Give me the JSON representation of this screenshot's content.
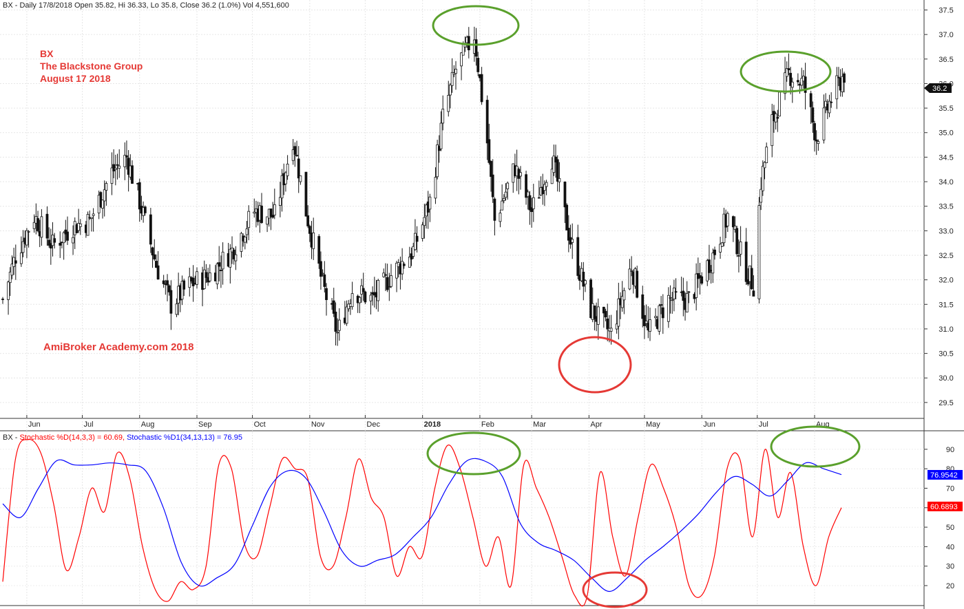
{
  "header": {
    "price": "BX - Daily 17/8/2018 Open 35.82, Hi 36.33, Lo 35.8, Close 36.2 (1.0%) Vol 4,551,600",
    "stoch_prefix": "BX - ",
    "stoch_d": "Stochastic %D(14,3,3) = 60.69,",
    "stoch_d1": "Stochastic %D1(34,13,13) = 76.95"
  },
  "annotations": {
    "symbol": "BX",
    "company": "The Blackstone Group",
    "date": "August 17 2018",
    "watermark": "AmiBroker Academy.com  2018"
  },
  "badges": {
    "last_close": "36.2",
    "stoch_d1_last": "76.9542",
    "stoch_d_last": "60.6893"
  },
  "colors": {
    "stoch_d": "#ff0000",
    "stoch_d1": "#0000ff",
    "peak_circle": "#5aa02c",
    "trough_circle": "#e53935",
    "annotation": "#e53935"
  },
  "chart_data": [
    {
      "type": "candlestick",
      "title": "",
      "ylim": [
        29.3,
        37.75
      ],
      "y_ticks": [
        "29.5",
        "30.0",
        "30.5",
        "31.0",
        "31.5",
        "32.0",
        "32.5",
        "33.0",
        "33.5",
        "34.0",
        "34.5",
        "35.0",
        "35.5",
        "36.0",
        "36.5",
        "37.0",
        "37.5"
      ],
      "x_tick_labels": [
        "Jun",
        "Jul",
        "Aug",
        "Sep",
        "Oct",
        "Nov",
        "Dec",
        "2018",
        "Feb",
        "Mar",
        "Apr",
        "May",
        "Jun",
        "Jul",
        "Aug"
      ],
      "close_path": [
        {
          "date": "2017-05-19",
          "close": 31.6
        },
        {
          "date": "2017-05-26",
          "close": 32.5
        },
        {
          "date": "2017-06-05",
          "close": 33.3
        },
        {
          "date": "2017-06-15",
          "close": 32.7
        },
        {
          "date": "2017-06-26",
          "close": 33.1
        },
        {
          "date": "2017-07-05",
          "close": 33.2
        },
        {
          "date": "2017-07-17",
          "close": 34.2
        },
        {
          "date": "2017-07-25",
          "close": 34.5
        },
        {
          "date": "2017-08-01",
          "close": 33.6
        },
        {
          "date": "2017-08-10",
          "close": 32.3
        },
        {
          "date": "2017-08-18",
          "close": 31.5
        },
        {
          "date": "2017-08-28",
          "close": 31.9
        },
        {
          "date": "2017-09-08",
          "close": 32.1
        },
        {
          "date": "2017-09-20",
          "close": 32.6
        },
        {
          "date": "2017-10-02",
          "close": 33.4
        },
        {
          "date": "2017-10-13",
          "close": 33.3
        },
        {
          "date": "2017-10-23",
          "close": 34.9
        },
        {
          "date": "2017-10-30",
          "close": 33.4
        },
        {
          "date": "2017-11-08",
          "close": 31.9
        },
        {
          "date": "2017-11-16",
          "close": 30.9
        },
        {
          "date": "2017-11-24",
          "close": 31.8
        },
        {
          "date": "2017-12-05",
          "close": 31.6
        },
        {
          "date": "2017-12-15",
          "close": 32.1
        },
        {
          "date": "2017-12-27",
          "close": 32.6
        },
        {
          "date": "2018-01-05",
          "close": 33.6
        },
        {
          "date": "2018-01-12",
          "close": 35.3
        },
        {
          "date": "2018-01-19",
          "close": 36.3
        },
        {
          "date": "2018-01-29",
          "close": 37.0
        },
        {
          "date": "2018-02-05",
          "close": 34.8
        },
        {
          "date": "2018-02-09",
          "close": 33.2
        },
        {
          "date": "2018-02-20",
          "close": 34.3
        },
        {
          "date": "2018-03-01",
          "close": 33.4
        },
        {
          "date": "2018-03-12",
          "close": 34.5
        },
        {
          "date": "2018-03-22",
          "close": 32.8
        },
        {
          "date": "2018-04-02",
          "close": 31.4
        },
        {
          "date": "2018-04-13",
          "close": 30.9
        },
        {
          "date": "2018-04-24",
          "close": 32.3
        },
        {
          "date": "2018-05-03",
          "close": 30.9
        },
        {
          "date": "2018-05-14",
          "close": 31.6
        },
        {
          "date": "2018-05-25",
          "close": 31.6
        },
        {
          "date": "2018-06-07",
          "close": 32.5
        },
        {
          "date": "2018-06-15",
          "close": 33.3
        },
        {
          "date": "2018-06-25",
          "close": 32.2
        },
        {
          "date": "2018-06-29",
          "close": 31.9
        },
        {
          "date": "2018-07-03",
          "close": 34.0
        },
        {
          "date": "2018-07-09",
          "close": 35.2
        },
        {
          "date": "2018-07-18",
          "close": 36.2
        },
        {
          "date": "2018-07-26",
          "close": 36.0
        },
        {
          "date": "2018-08-02",
          "close": 34.9
        },
        {
          "date": "2018-08-10",
          "close": 35.7
        },
        {
          "date": "2018-08-17",
          "close": 36.2
        }
      ]
    },
    {
      "type": "line",
      "title": "",
      "ylim": [
        10,
        100
      ],
      "y_ticks": [
        "20",
        "30",
        "40",
        "50",
        "60",
        "70",
        "80",
        "90"
      ],
      "series": [
        {
          "name": "Stochastic %D(14,3,3)",
          "values": [
            22,
            85,
            95,
            88,
            62,
            28,
            45,
            70,
            58,
            88,
            75,
            40,
            18,
            12,
            22,
            18,
            30,
            82,
            80,
            42,
            35,
            60,
            85,
            80,
            75,
            35,
            30,
            55,
            85,
            65,
            55,
            25,
            40,
            35,
            70,
            92,
            80,
            55,
            30,
            45,
            20,
            82,
            70,
            55,
            35,
            15,
            15,
            78,
            45,
            25,
            55,
            82,
            70,
            50,
            20,
            15,
            35,
            80,
            85,
            45,
            90,
            55,
            78,
            40,
            20,
            45,
            60
          ]
        },
        {
          "name": "Stochastic %D1(34,13,13)",
          "values": [
            62,
            55,
            70,
            84,
            82,
            82,
            83,
            82,
            79,
            60,
            32,
            20,
            24,
            31,
            51,
            71,
            79,
            75,
            58,
            38,
            30,
            33,
            36,
            45,
            55,
            72,
            84,
            84,
            76,
            52,
            42,
            38,
            33,
            24,
            17,
            24,
            33,
            40,
            48,
            57,
            68,
            76,
            72,
            66,
            74,
            83,
            80,
            77
          ]
        }
      ]
    }
  ]
}
